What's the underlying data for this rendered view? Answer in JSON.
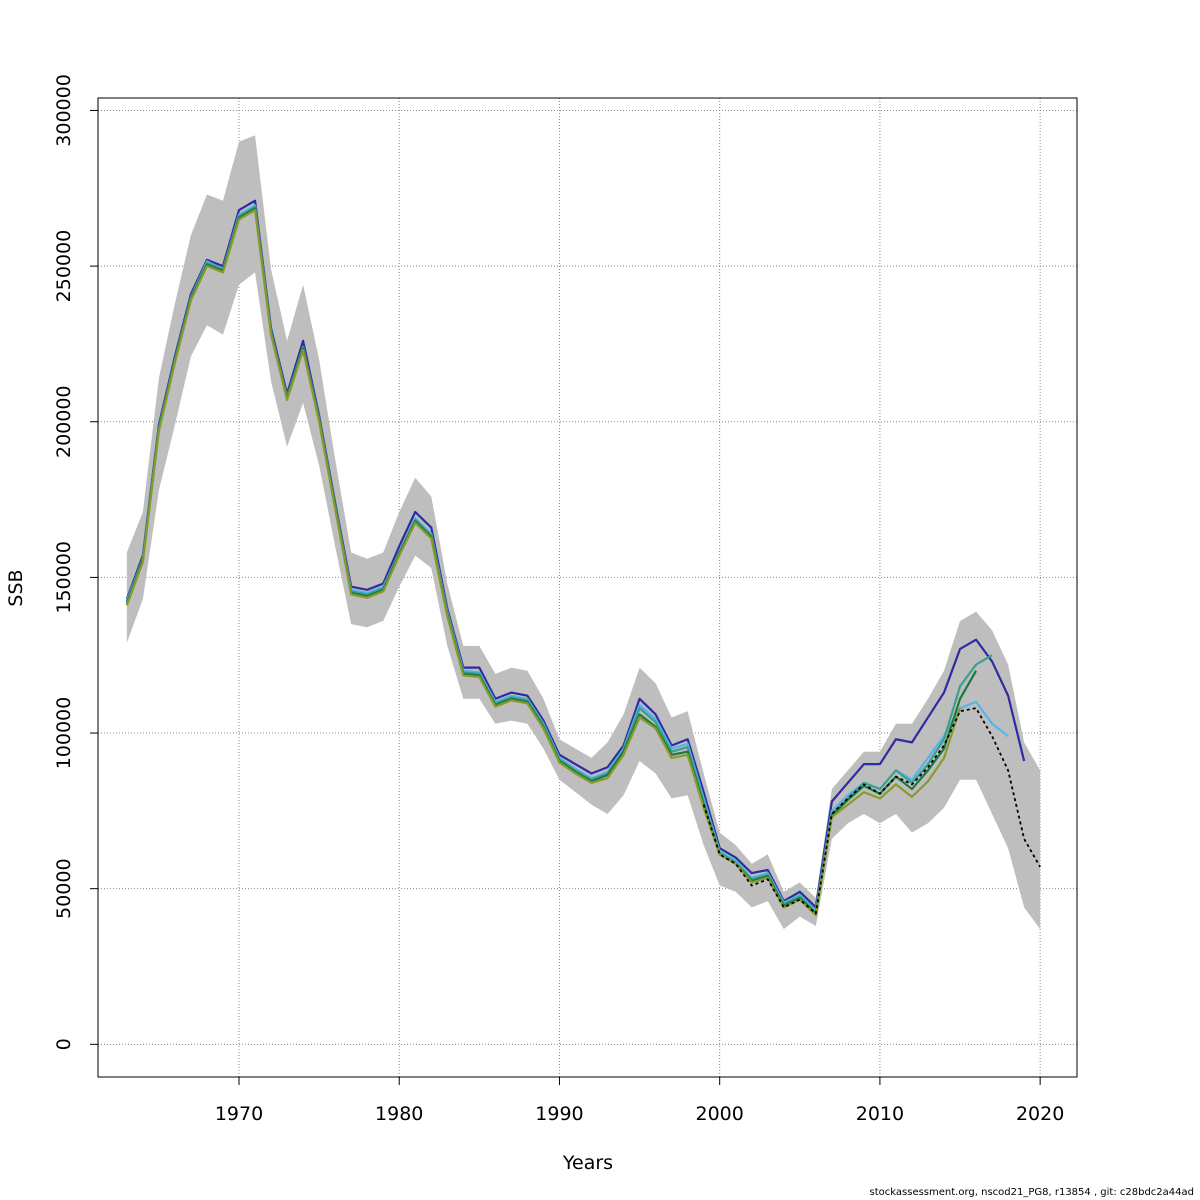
{
  "chart_data": {
    "type": "line",
    "xlabel": "Years",
    "ylabel": "SSB",
    "xlim": [
      1961.2,
      2022.3
    ],
    "ylim": [
      -10500,
      304000
    ],
    "x_ticks": [
      1970,
      1980,
      1990,
      2000,
      2010,
      2020
    ],
    "y_ticks": [
      0,
      50000,
      100000,
      150000,
      200000,
      250000,
      300000
    ],
    "x_tick_labels": [
      "1970",
      "1980",
      "1990",
      "2000",
      "2010",
      "2020"
    ],
    "y_tick_labels": [
      "0",
      "50000",
      "100000",
      "150000",
      "200000",
      "250000",
      "300000"
    ],
    "grid": true,
    "band_color": "#bebebe",
    "confidence_band": {
      "x": [
        1963,
        1964,
        1965,
        1966,
        1967,
        1968,
        1969,
        1970,
        1971,
        1972,
        1973,
        1974,
        1975,
        1976,
        1977,
        1978,
        1979,
        1980,
        1981,
        1982,
        1983,
        1984,
        1985,
        1986,
        1987,
        1988,
        1989,
        1990,
        1991,
        1992,
        1993,
        1994,
        1995,
        1996,
        1997,
        1998,
        1999,
        2000,
        2001,
        2002,
        2003,
        2004,
        2005,
        2006,
        2007,
        2008,
        2009,
        2010,
        2011,
        2012,
        2013,
        2014,
        2015,
        2016,
        2017,
        2018,
        2019,
        2020
      ],
      "upper": [
        158000,
        171000,
        214000,
        238000,
        260000,
        273000,
        271000,
        290000,
        292000,
        249000,
        226000,
        244000,
        220000,
        188000,
        158000,
        156000,
        158000,
        171000,
        182000,
        176000,
        148000,
        128000,
        128000,
        119000,
        121000,
        120000,
        111000,
        98000,
        95000,
        92000,
        97000,
        106000,
        121000,
        116000,
        105000,
        107000,
        87000,
        68000,
        64000,
        58000,
        61000,
        49000,
        52000,
        47000,
        82000,
        88000,
        94000,
        94000,
        103000,
        103000,
        111000,
        120000,
        136000,
        139000,
        133000,
        122000,
        97000,
        88000
      ],
      "lower": [
        129000,
        143000,
        178000,
        199000,
        221000,
        231000,
        228000,
        244000,
        248000,
        213000,
        192000,
        206000,
        186000,
        160000,
        135000,
        134000,
        136000,
        147000,
        157000,
        153000,
        128000,
        111000,
        111000,
        103000,
        104000,
        103000,
        95000,
        85000,
        81000,
        77000,
        74000,
        80000,
        91000,
        87000,
        79000,
        80000,
        64000,
        51000,
        49000,
        44000,
        46000,
        37000,
        41000,
        38000,
        66000,
        71000,
        74000,
        71000,
        74000,
        68000,
        71000,
        76000,
        85000,
        85000,
        74000,
        63000,
        44000,
        37000
      ]
    },
    "series": [
      {
        "color": "#2f2ba0",
        "x": [
          1963,
          1964,
          1965,
          1966,
          1967,
          1968,
          1969,
          1970,
          1971,
          1972,
          1973,
          1974,
          1975,
          1976,
          1977,
          1978,
          1979,
          1980,
          1981,
          1982,
          1983,
          1984,
          1985,
          1986,
          1987,
          1988,
          1989,
          1990,
          1991,
          1992,
          1993,
          1994,
          1995,
          1996,
          1997,
          1998,
          1999,
          2000,
          2001,
          2002,
          2003,
          2004,
          2005,
          2006,
          2007,
          2008,
          2009,
          2010,
          2011,
          2012,
          2013,
          2014,
          2015,
          2016,
          2017,
          2018,
          2019
        ],
        "y": [
          143000,
          157000,
          199000,
          221000,
          241000,
          252000,
          250000,
          268000,
          271000,
          230000,
          209000,
          226000,
          202000,
          174000,
          147000,
          146000,
          148000,
          160000,
          171000,
          166000,
          140000,
          121000,
          121000,
          111000,
          113000,
          112000,
          104000,
          93000,
          90000,
          87000,
          89000,
          96000,
          111000,
          106000,
          96000,
          98000,
          81000,
          63000,
          60000,
          55000,
          56000,
          46000,
          49000,
          44000,
          78000,
          84000,
          90000,
          90000,
          98000,
          97000,
          105000,
          113000,
          127000,
          130000,
          123000,
          112000,
          91000
        ]
      },
      {
        "color": "#56b4e9",
        "x": [
          1963,
          1964,
          1965,
          1966,
          1967,
          1968,
          1969,
          1970,
          1971,
          1972,
          1973,
          1974,
          1975,
          1976,
          1977,
          1978,
          1979,
          1980,
          1981,
          1982,
          1983,
          1984,
          1985,
          1986,
          1987,
          1988,
          1989,
          1990,
          1991,
          1992,
          1993,
          1994,
          1995,
          1996,
          1997,
          1998,
          1999,
          2000,
          2001,
          2002,
          2003,
          2004,
          2005,
          2006,
          2007,
          2008,
          2009,
          2010,
          2011,
          2012,
          2013,
          2014,
          2015,
          2016,
          2017,
          2018
        ],
        "y": [
          142500,
          156000,
          198000,
          220000,
          240000,
          251500,
          249000,
          266500,
          269500,
          229000,
          208000,
          224000,
          201000,
          173000,
          146000,
          145000,
          147000,
          158000,
          169000,
          164000,
          139000,
          120000,
          119500,
          110000,
          112000,
          111000,
          103000,
          92000,
          88500,
          85500,
          87500,
          95000,
          109000,
          104500,
          95000,
          96500,
          79000,
          62000,
          59000,
          53500,
          55000,
          45500,
          48000,
          43000,
          75000,
          80000,
          84000,
          82000,
          88000,
          85000,
          92000,
          99000,
          108000,
          110000,
          103000,
          99000
        ]
      },
      {
        "color": "#3aa18f",
        "x": [
          1963,
          1964,
          1965,
          1966,
          1967,
          1968,
          1969,
          1970,
          1971,
          1972,
          1973,
          1974,
          1975,
          1976,
          1977,
          1978,
          1979,
          1980,
          1981,
          1982,
          1983,
          1984,
          1985,
          1986,
          1987,
          1988,
          1989,
          1990,
          1991,
          1992,
          1993,
          1994,
          1995,
          1996,
          1997,
          1998,
          1999,
          2000,
          2001,
          2002,
          2003,
          2004,
          2005,
          2006,
          2007,
          2008,
          2009,
          2010,
          2011,
          2012,
          2013,
          2014,
          2015,
          2016,
          2017
        ],
        "y": [
          142000,
          156000,
          198000,
          220000,
          240000,
          251000,
          249000,
          266000,
          269000,
          229000,
          208000,
          224000,
          201000,
          173000,
          145500,
          144500,
          146500,
          158000,
          168500,
          163500,
          138500,
          119500,
          119000,
          109500,
          111500,
          110500,
          102500,
          91500,
          88000,
          85000,
          87000,
          94500,
          108000,
          103500,
          94000,
          95500,
          78000,
          61500,
          58500,
          53000,
          54500,
          45000,
          47500,
          42500,
          74000,
          79000,
          84000,
          82000,
          88000,
          84000,
          90000,
          98000,
          115000,
          122000,
          125000
        ]
      },
      {
        "color": "#1c7a3e",
        "x": [
          1963,
          1964,
          1965,
          1966,
          1967,
          1968,
          1969,
          1970,
          1971,
          1972,
          1973,
          1974,
          1975,
          1976,
          1977,
          1978,
          1979,
          1980,
          1981,
          1982,
          1983,
          1984,
          1985,
          1986,
          1987,
          1988,
          1989,
          1990,
          1991,
          1992,
          1993,
          1994,
          1995,
          1996,
          1997,
          1998,
          1999,
          2000,
          2001,
          2002,
          2003,
          2004,
          2005,
          2006,
          2007,
          2008,
          2009,
          2010,
          2011,
          2012,
          2013,
          2014,
          2015,
          2016
        ],
        "y": [
          141500,
          155500,
          197500,
          219500,
          239500,
          250500,
          248500,
          265500,
          268500,
          228500,
          207500,
          223500,
          200500,
          172500,
          145000,
          144000,
          146000,
          157500,
          168000,
          163000,
          138000,
          119000,
          118500,
          109000,
          111000,
          110000,
          102000,
          91000,
          87500,
          84500,
          86500,
          94000,
          106000,
          102000,
          93000,
          94000,
          77000,
          61000,
          58000,
          52500,
          54000,
          44500,
          47000,
          42000,
          73500,
          78500,
          83000,
          80500,
          86000,
          82000,
          88000,
          95000,
          111000,
          120000
        ]
      },
      {
        "color": "#8a9a2a",
        "x": [
          1963,
          1964,
          1965,
          1966,
          1967,
          1968,
          1969,
          1970,
          1971,
          1972,
          1973,
          1974,
          1975,
          1976,
          1977,
          1978,
          1979,
          1980,
          1981,
          1982,
          1983,
          1984,
          1985,
          1986,
          1987,
          1988,
          1989,
          1990,
          1991,
          1992,
          1993,
          1994,
          1995,
          1996,
          1997,
          1998,
          1999,
          2000,
          2001,
          2002,
          2003,
          2004,
          2005,
          2006,
          2007,
          2008,
          2009,
          2010,
          2011,
          2012,
          2013,
          2014,
          2015
        ],
        "y": [
          141000,
          155000,
          197000,
          219000,
          239000,
          250000,
          248000,
          265000,
          268000,
          228000,
          207000,
          223000,
          200000,
          172000,
          144500,
          143500,
          145500,
          157000,
          167500,
          162500,
          137500,
          118500,
          118000,
          108500,
          110500,
          109500,
          101500,
          90500,
          87000,
          84000,
          85500,
          93000,
          105000,
          101500,
          92000,
          93000,
          76000,
          61000,
          58000,
          52000,
          53500,
          44000,
          46500,
          41500,
          73000,
          77000,
          81000,
          79000,
          83500,
          79500,
          84500,
          92000,
          108000
        ]
      },
      {
        "color": "#000000",
        "dashed": true,
        "x": [
          1999,
          2000,
          2001,
          2002,
          2003,
          2004,
          2005,
          2006,
          2007,
          2008,
          2009,
          2010,
          2011,
          2012,
          2013,
          2014,
          2015,
          2016,
          2017,
          2018,
          2019,
          2020
        ],
        "y": [
          77000,
          61000,
          58000,
          51000,
          53000,
          44000,
          46500,
          42000,
          74000,
          79000,
          83500,
          80500,
          86000,
          83500,
          89000,
          96000,
          107000,
          108000,
          99000,
          88000,
          66000,
          57000
        ]
      }
    ]
  },
  "footer": {
    "text": "stockassessment.org, nscod21_PG8, r13854 , git: c28bdc2a44ad"
  }
}
